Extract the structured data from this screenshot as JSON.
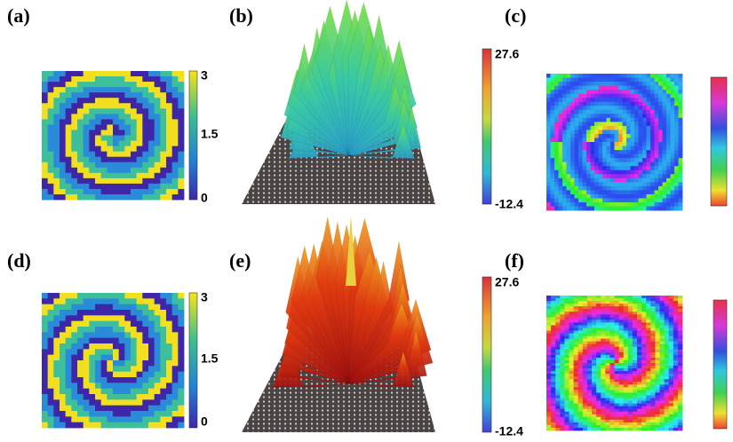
{
  "panels": [
    {
      "label": "(a)",
      "colorbar_ticks": [
        3,
        1.5,
        0
      ]
    },
    {
      "label": "(b)",
      "colorbar_ticks": [
        27.6,
        -12.4
      ]
    },
    {
      "label": "(c)"
    },
    {
      "label": "(d)",
      "colorbar_ticks": [
        3,
        1.5,
        0
      ]
    },
    {
      "label": "(e)",
      "colorbar_ticks": [
        27.6,
        -12.4
      ]
    },
    {
      "label": "(f)"
    }
  ]
}
